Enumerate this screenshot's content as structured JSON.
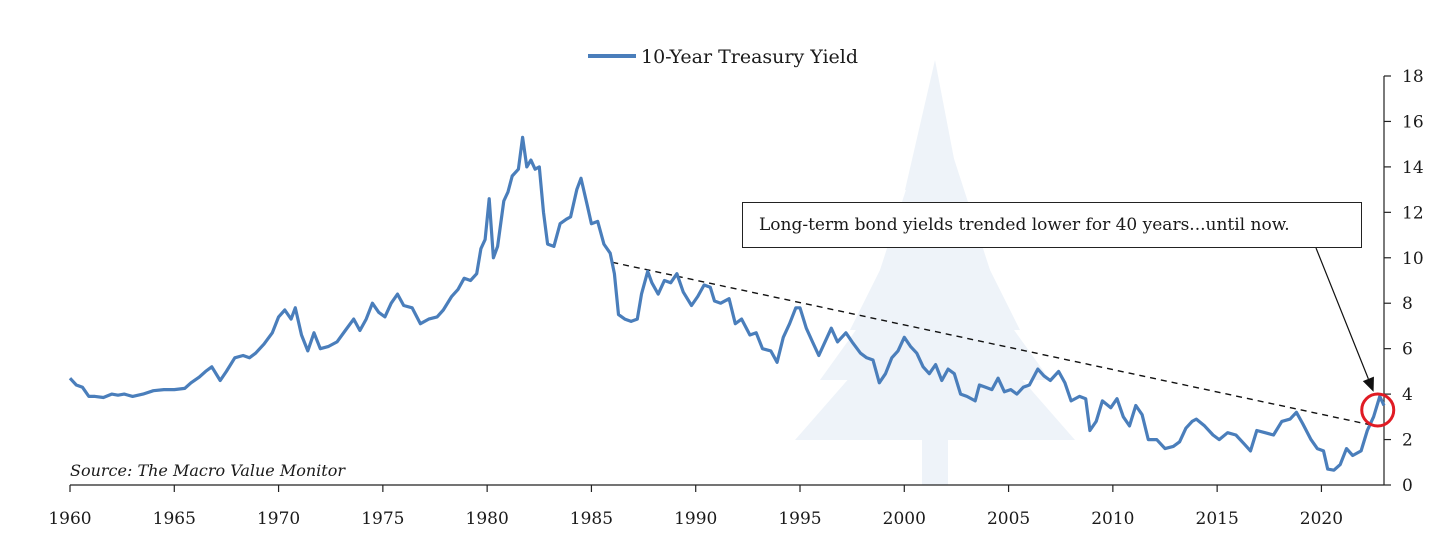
{
  "chart_data": {
    "type": "line",
    "title": "",
    "legend": [
      "10-Year Treasury Yield"
    ],
    "legend_position": "top-center",
    "xlabel": "",
    "ylabel": "",
    "y_axis_side": "right",
    "xlim": [
      1960,
      2023
    ],
    "ylim": [
      0,
      18
    ],
    "x_ticks": [
      "1960",
      "1965",
      "1970",
      "1975",
      "1980",
      "1985",
      "1990",
      "1995",
      "2000",
      "2005",
      "2010",
      "2015",
      "2020"
    ],
    "y_ticks": [
      "0",
      "2",
      "4",
      "6",
      "8",
      "10",
      "12",
      "14",
      "16",
      "18"
    ],
    "grid": false,
    "series": [
      {
        "name": "10-Year Treasury Yield",
        "color": "#4a7ebb",
        "points": [
          [
            1960.0,
            4.7
          ],
          [
            1960.3,
            4.4
          ],
          [
            1960.6,
            4.3
          ],
          [
            1960.9,
            3.9
          ],
          [
            1961.2,
            3.9
          ],
          [
            1961.6,
            3.85
          ],
          [
            1962.0,
            4.0
          ],
          [
            1962.3,
            3.95
          ],
          [
            1962.6,
            4.0
          ],
          [
            1963.0,
            3.9
          ],
          [
            1963.5,
            4.0
          ],
          [
            1964.0,
            4.15
          ],
          [
            1964.5,
            4.2
          ],
          [
            1965.0,
            4.2
          ],
          [
            1965.5,
            4.25
          ],
          [
            1965.8,
            4.5
          ],
          [
            1966.2,
            4.75
          ],
          [
            1966.5,
            5.0
          ],
          [
            1966.8,
            5.2
          ],
          [
            1967.2,
            4.6
          ],
          [
            1967.5,
            5.0
          ],
          [
            1967.9,
            5.6
          ],
          [
            1968.3,
            5.7
          ],
          [
            1968.6,
            5.6
          ],
          [
            1968.9,
            5.8
          ],
          [
            1969.3,
            6.2
          ],
          [
            1969.7,
            6.7
          ],
          [
            1970.0,
            7.4
          ],
          [
            1970.3,
            7.7
          ],
          [
            1970.6,
            7.3
          ],
          [
            1970.8,
            7.8
          ],
          [
            1971.1,
            6.6
          ],
          [
            1971.4,
            5.9
          ],
          [
            1971.7,
            6.7
          ],
          [
            1972.0,
            6.0
          ],
          [
            1972.4,
            6.1
          ],
          [
            1972.8,
            6.3
          ],
          [
            1973.2,
            6.8
          ],
          [
            1973.6,
            7.3
          ],
          [
            1973.9,
            6.8
          ],
          [
            1974.2,
            7.3
          ],
          [
            1974.5,
            8.0
          ],
          [
            1974.8,
            7.6
          ],
          [
            1975.1,
            7.4
          ],
          [
            1975.4,
            8.0
          ],
          [
            1975.7,
            8.4
          ],
          [
            1976.0,
            7.9
          ],
          [
            1976.4,
            7.8
          ],
          [
            1976.8,
            7.1
          ],
          [
            1977.2,
            7.3
          ],
          [
            1977.6,
            7.4
          ],
          [
            1977.9,
            7.7
          ],
          [
            1978.3,
            8.3
          ],
          [
            1978.6,
            8.6
          ],
          [
            1978.9,
            9.1
          ],
          [
            1979.2,
            9.0
          ],
          [
            1979.5,
            9.3
          ],
          [
            1979.7,
            10.4
          ],
          [
            1979.9,
            10.8
          ],
          [
            1980.1,
            12.6
          ],
          [
            1980.3,
            10.0
          ],
          [
            1980.5,
            10.5
          ],
          [
            1980.8,
            12.5
          ],
          [
            1981.0,
            12.9
          ],
          [
            1981.2,
            13.6
          ],
          [
            1981.5,
            13.9
          ],
          [
            1981.7,
            15.3
          ],
          [
            1981.9,
            14.0
          ],
          [
            1982.1,
            14.3
          ],
          [
            1982.3,
            13.9
          ],
          [
            1982.5,
            14.0
          ],
          [
            1982.7,
            12.0
          ],
          [
            1982.9,
            10.6
          ],
          [
            1983.2,
            10.5
          ],
          [
            1983.5,
            11.5
          ],
          [
            1983.8,
            11.7
          ],
          [
            1984.0,
            11.8
          ],
          [
            1984.3,
            13.0
          ],
          [
            1984.5,
            13.5
          ],
          [
            1984.8,
            12.3
          ],
          [
            1985.0,
            11.5
          ],
          [
            1985.3,
            11.6
          ],
          [
            1985.6,
            10.6
          ],
          [
            1985.9,
            10.2
          ],
          [
            1986.1,
            9.3
          ],
          [
            1986.3,
            7.5
          ],
          [
            1986.6,
            7.3
          ],
          [
            1986.9,
            7.2
          ],
          [
            1987.2,
            7.3
          ],
          [
            1987.4,
            8.4
          ],
          [
            1987.7,
            9.4
          ],
          [
            1987.9,
            8.9
          ],
          [
            1988.2,
            8.4
          ],
          [
            1988.5,
            9.0
          ],
          [
            1988.8,
            8.9
          ],
          [
            1989.1,
            9.3
          ],
          [
            1989.4,
            8.5
          ],
          [
            1989.8,
            7.9
          ],
          [
            1990.1,
            8.3
          ],
          [
            1990.4,
            8.8
          ],
          [
            1990.7,
            8.7
          ],
          [
            1990.9,
            8.1
          ],
          [
            1991.2,
            8.0
          ],
          [
            1991.6,
            8.2
          ],
          [
            1991.9,
            7.1
          ],
          [
            1992.2,
            7.3
          ],
          [
            1992.6,
            6.6
          ],
          [
            1992.9,
            6.7
          ],
          [
            1993.2,
            6.0
          ],
          [
            1993.6,
            5.9
          ],
          [
            1993.9,
            5.4
          ],
          [
            1994.2,
            6.5
          ],
          [
            1994.5,
            7.1
          ],
          [
            1994.8,
            7.8
          ],
          [
            1995.0,
            7.8
          ],
          [
            1995.3,
            6.9
          ],
          [
            1995.6,
            6.3
          ],
          [
            1995.9,
            5.7
          ],
          [
            1996.2,
            6.3
          ],
          [
            1996.5,
            6.9
          ],
          [
            1996.8,
            6.3
          ],
          [
            1997.2,
            6.7
          ],
          [
            1997.5,
            6.3
          ],
          [
            1997.9,
            5.8
          ],
          [
            1998.2,
            5.6
          ],
          [
            1998.5,
            5.5
          ],
          [
            1998.8,
            4.5
          ],
          [
            1999.1,
            4.9
          ],
          [
            1999.4,
            5.6
          ],
          [
            1999.7,
            5.9
          ],
          [
            2000.0,
            6.5
          ],
          [
            2000.3,
            6.1
          ],
          [
            2000.6,
            5.8
          ],
          [
            2000.9,
            5.2
          ],
          [
            2001.2,
            4.9
          ],
          [
            2001.5,
            5.3
          ],
          [
            2001.8,
            4.6
          ],
          [
            2002.1,
            5.1
          ],
          [
            2002.4,
            4.9
          ],
          [
            2002.7,
            4.0
          ],
          [
            2003.0,
            3.9
          ],
          [
            2003.4,
            3.7
          ],
          [
            2003.6,
            4.4
          ],
          [
            2003.9,
            4.3
          ],
          [
            2004.2,
            4.2
          ],
          [
            2004.5,
            4.7
          ],
          [
            2004.8,
            4.1
          ],
          [
            2005.1,
            4.2
          ],
          [
            2005.4,
            4.0
          ],
          [
            2005.7,
            4.3
          ],
          [
            2006.0,
            4.4
          ],
          [
            2006.4,
            5.1
          ],
          [
            2006.7,
            4.8
          ],
          [
            2007.0,
            4.6
          ],
          [
            2007.4,
            5.0
          ],
          [
            2007.7,
            4.5
          ],
          [
            2008.0,
            3.7
          ],
          [
            2008.4,
            3.9
          ],
          [
            2008.7,
            3.8
          ],
          [
            2008.9,
            2.4
          ],
          [
            2009.2,
            2.8
          ],
          [
            2009.5,
            3.7
          ],
          [
            2009.9,
            3.4
          ],
          [
            2010.2,
            3.8
          ],
          [
            2010.5,
            3.0
          ],
          [
            2010.8,
            2.6
          ],
          [
            2011.1,
            3.5
          ],
          [
            2011.4,
            3.1
          ],
          [
            2011.7,
            2.0
          ],
          [
            2012.1,
            2.0
          ],
          [
            2012.5,
            1.6
          ],
          [
            2012.9,
            1.7
          ],
          [
            2013.2,
            1.9
          ],
          [
            2013.5,
            2.5
          ],
          [
            2013.8,
            2.8
          ],
          [
            2014.0,
            2.9
          ],
          [
            2014.4,
            2.6
          ],
          [
            2014.8,
            2.2
          ],
          [
            2015.1,
            2.0
          ],
          [
            2015.5,
            2.3
          ],
          [
            2015.9,
            2.2
          ],
          [
            2016.3,
            1.8
          ],
          [
            2016.6,
            1.5
          ],
          [
            2016.9,
            2.4
          ],
          [
            2017.3,
            2.3
          ],
          [
            2017.7,
            2.2
          ],
          [
            2018.1,
            2.8
          ],
          [
            2018.5,
            2.9
          ],
          [
            2018.8,
            3.2
          ],
          [
            2019.1,
            2.7
          ],
          [
            2019.5,
            2.0
          ],
          [
            2019.8,
            1.6
          ],
          [
            2020.1,
            1.5
          ],
          [
            2020.3,
            0.7
          ],
          [
            2020.6,
            0.65
          ],
          [
            2020.9,
            0.9
          ],
          [
            2021.2,
            1.6
          ],
          [
            2021.5,
            1.3
          ],
          [
            2021.9,
            1.5
          ],
          [
            2022.2,
            2.4
          ],
          [
            2022.5,
            3.0
          ],
          [
            2022.8,
            3.9
          ],
          [
            2023.0,
            3.5
          ]
        ]
      }
    ],
    "trendline": {
      "from": [
        1986.0,
        9.8
      ],
      "to": [
        2022.6,
        2.6
      ],
      "style": "dashed"
    },
    "highlight_circle": {
      "center": [
        2022.7,
        3.3
      ],
      "color": "#e01b24"
    },
    "annotation": {
      "text": "Long-term bond yields trended lower for 40 years...until now.",
      "arrow_to": [
        2022.5,
        4.1
      ]
    },
    "source_note": "Source: The Macro Value Monitor"
  }
}
